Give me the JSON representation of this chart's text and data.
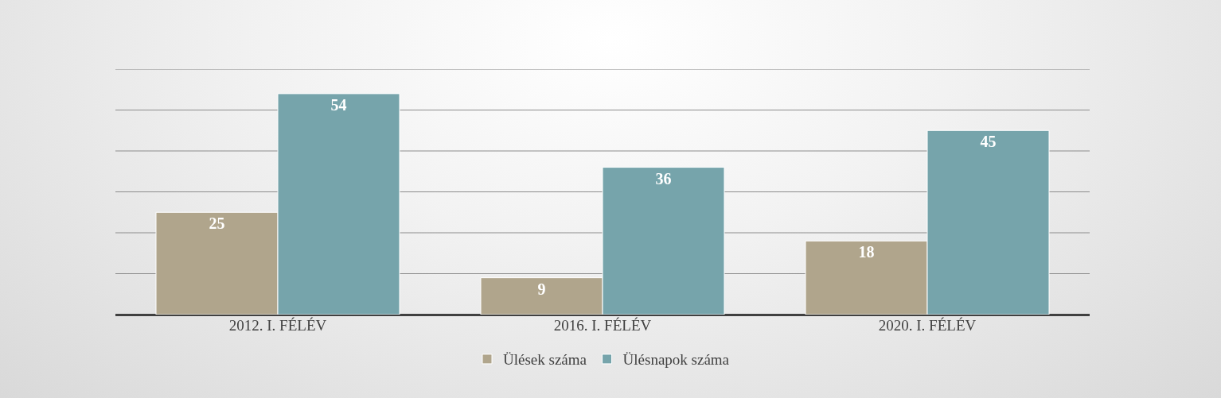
{
  "chart_data": {
    "type": "bar",
    "categories": [
      "2012. I. FÉLÉV",
      "2016. I. FÉLÉV",
      "2020. I. FÉLÉV"
    ],
    "series": [
      {
        "name": "Ülések száma",
        "color": "#b0a58c",
        "values": [
          25,
          9,
          18
        ]
      },
      {
        "name": "Ülésnapok száma",
        "color": "#76a4ab",
        "values": [
          54,
          36,
          45
        ]
      }
    ],
    "ylim": [
      0,
      60
    ],
    "yticks": [
      {
        "value": 0,
        "label": null
      },
      {
        "value": 10,
        "label": null
      },
      {
        "value": 20,
        "label": null
      },
      {
        "value": 30,
        "label": null
      },
      {
        "value": 40,
        "label": null
      },
      {
        "value": 50,
        "label": null
      },
      {
        "value": 60,
        "label": null
      }
    ],
    "grid": "y",
    "tick_labels": "x",
    "data_labels": true,
    "legend": "bottom"
  }
}
